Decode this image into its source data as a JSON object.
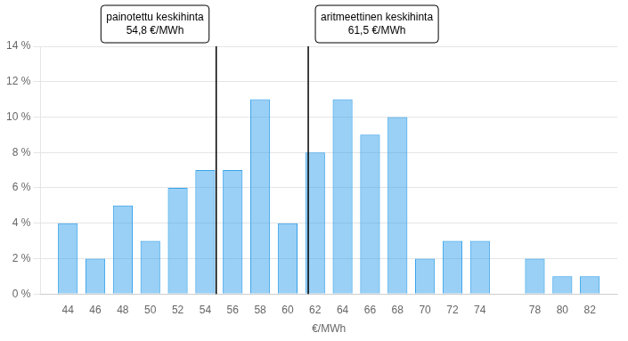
{
  "chart_data": {
    "type": "bar",
    "x": [
      44,
      46,
      48,
      50,
      52,
      54,
      56,
      58,
      60,
      62,
      64,
      66,
      68,
      70,
      72,
      74,
      78,
      80,
      82
    ],
    "values": [
      4,
      2,
      5,
      3,
      6,
      7,
      7,
      11,
      4,
      8,
      11,
      9,
      10,
      2,
      3,
      3,
      2,
      1,
      1
    ],
    "x_label": "€/MWh",
    "xlim": [
      42,
      84
    ],
    "xticks": [
      44,
      46,
      48,
      50,
      52,
      54,
      56,
      58,
      60,
      62,
      64,
      66,
      68,
      70,
      72,
      74,
      78,
      80,
      82
    ],
    "ylim": [
      0,
      14
    ],
    "yticks": [
      {
        "value": 0,
        "label": "0 %"
      },
      {
        "value": 2,
        "label": "2 %"
      },
      {
        "value": 4,
        "label": "4 %"
      },
      {
        "value": 6,
        "label": "6 %"
      },
      {
        "value": 8,
        "label": "8 %"
      },
      {
        "value": 10,
        "label": "10 %"
      },
      {
        "value": 12,
        "label": "12 %"
      },
      {
        "value": 14,
        "label": "14 %"
      }
    ],
    "grid": "y",
    "annotations": [
      {
        "x": 54.8,
        "text": "painotettu keskihinta\n54,8 €/MWh"
      },
      {
        "x": 61.5,
        "text": "aritmeettinen keskihinta\n61,5 €/MWh"
      }
    ]
  }
}
